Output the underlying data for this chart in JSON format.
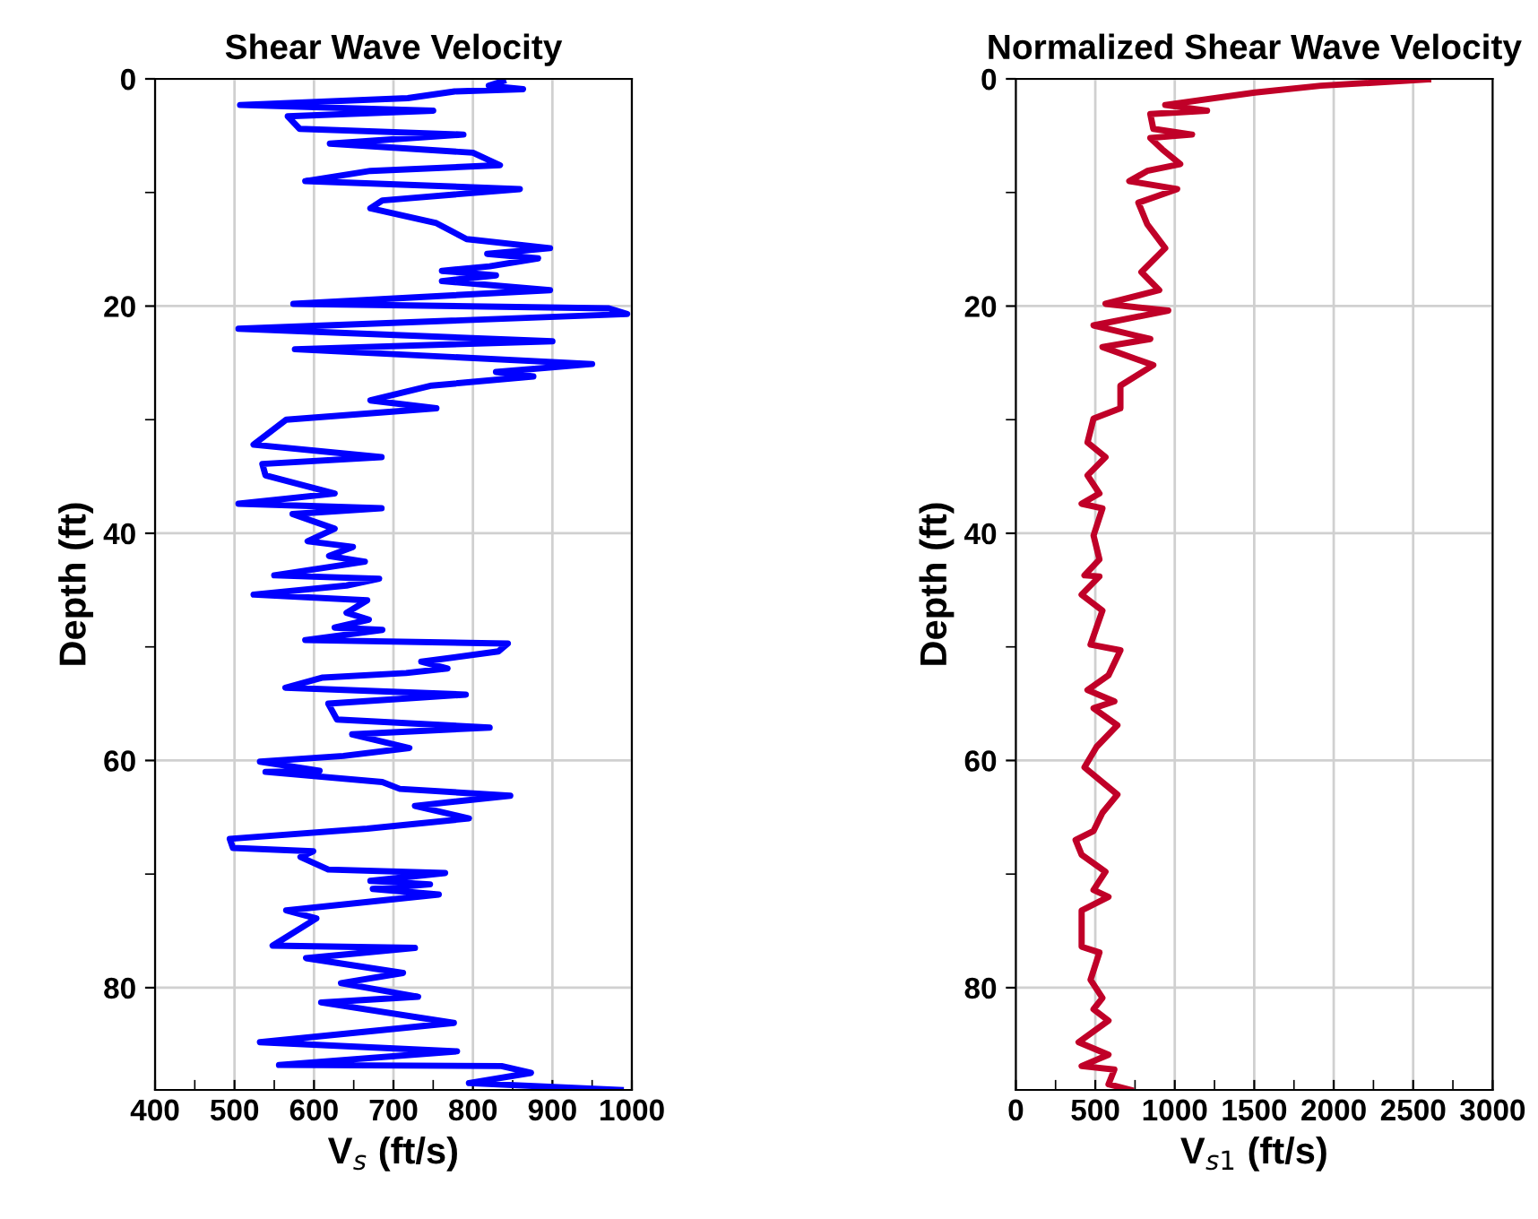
{
  "chart_data": [
    {
      "type": "line",
      "title": "Shear Wave Velocity",
      "xlabel": "V$_{s}$ (ft/s)",
      "ylabel": "Depth (ft)",
      "xlim": [
        400,
        1000
      ],
      "ylim": [
        89,
        0
      ],
      "xticks": [
        400,
        {
          "value": 450,
          "label": null
        },
        500,
        {
          "value": 550,
          "label": null
        },
        600,
        {
          "value": 650,
          "label": null
        },
        700,
        {
          "value": 750,
          "label": null
        },
        800,
        {
          "value": 850,
          "label": null
        },
        900,
        {
          "value": 950,
          "label": null
        },
        1000
      ],
      "yticks": [
        0,
        {
          "value": 10,
          "label": null
        },
        20,
        {
          "value": 30,
          "label": null
        },
        40,
        {
          "value": 50,
          "label": null
        },
        60,
        {
          "value": 70,
          "label": null
        },
        80
      ],
      "grid": true,
      "legend": false,
      "marker": "none",
      "line_style": "solid",
      "series": [
        {
          "color": "#0000ff",
          "x": [
            838,
            820,
            863,
            777,
            718,
            507,
            750,
            567,
            582,
            788,
            620,
            800,
            834,
            671,
            589,
            859,
            686,
            671,
            754,
            792,
            897,
            818,
            882,
            821,
            761,
            829,
            761,
            897,
            574,
            971,
            994,
            505,
            900,
            576,
            950,
            829,
            876,
            748,
            671,
            754,
            565,
            524,
            685,
            535,
            539,
            626,
            505,
            685,
            573,
            626,
            592,
            649,
            619,
            664,
            550,
            682,
            641,
            524,
            667,
            641,
            669,
            626,
            686,
            589,
            844,
            832,
            735,
            768,
            716,
            611,
            564,
            791,
            618,
            629,
            821,
            648,
            720,
            637,
            532,
            607,
            539,
            686,
            708,
            847,
            727,
            795,
            667,
            494,
            498,
            599,
            583,
            618,
            765,
            671,
            746,
            674,
            757,
            565,
            603,
            548,
            727,
            590,
            712,
            634,
            731,
            609,
            776,
            532,
            780,
            556,
            836,
            873,
            795,
            986
          ],
          "values": [
            0.2,
            0.6,
            0.9,
            1.1,
            1.7,
            2.3,
            2.8,
            3.3,
            4.4,
            4.9,
            5.7,
            6.5,
            7.6,
            8.1,
            9.0,
            9.7,
            10.7,
            11.4,
            12.7,
            14.1,
            14.9,
            15.4,
            15.8,
            16.5,
            16.9,
            17.3,
            17.8,
            18.6,
            19.8,
            20.2,
            20.7,
            22.0,
            23.1,
            23.8,
            25.1,
            25.8,
            26.2,
            27.0,
            28.3,
            29.0,
            30.0,
            32.2,
            33.3,
            33.9,
            34.9,
            36.5,
            37.4,
            37.8,
            38.3,
            39.6,
            40.7,
            41.2,
            42.0,
            42.5,
            43.7,
            44.0,
            44.6,
            45.4,
            45.9,
            47.0,
            47.6,
            48.3,
            48.5,
            49.4,
            49.7,
            50.4,
            51.3,
            51.9,
            52.3,
            52.7,
            53.6,
            54.2,
            55.0,
            56.4,
            57.1,
            57.7,
            58.9,
            59.6,
            60.1,
            60.9,
            61.0,
            61.9,
            62.5,
            63.1,
            64.0,
            65.1,
            66.0,
            66.9,
            67.7,
            68.0,
            68.5,
            69.6,
            69.9,
            70.6,
            70.9,
            71.3,
            71.8,
            73.2,
            73.9,
            76.3,
            76.5,
            77.4,
            78.7,
            79.6,
            80.8,
            81.3,
            83.1,
            84.8,
            85.6,
            86.8,
            86.9,
            87.5,
            88.4,
            89.0
          ]
        }
      ]
    },
    {
      "type": "line",
      "title": "Normalized Shear Wave Velocity",
      "xlabel": "V$_{s1}$ (ft/s)",
      "ylabel": "Depth (ft)",
      "xlim": [
        0,
        3000
      ],
      "ylim": [
        89,
        0
      ],
      "xticks": [
        0,
        {
          "value": 250,
          "label": null
        },
        500,
        {
          "value": 750,
          "label": null
        },
        1000,
        {
          "value": 1250,
          "label": null
        },
        1500,
        {
          "value": 1750,
          "label": null
        },
        2000,
        {
          "value": 2250,
          "label": null
        },
        2500,
        {
          "value": 2750,
          "label": null
        },
        3000
      ],
      "yticks": [
        0,
        {
          "value": 10,
          "label": null
        },
        20,
        {
          "value": 30,
          "label": null
        },
        40,
        {
          "value": 50,
          "label": null
        },
        60,
        {
          "value": 70,
          "label": null
        },
        80
      ],
      "grid": true,
      "legend": false,
      "marker": "none",
      "line_style": "solid",
      "series": [
        {
          "color": "#c00028",
          "x": [
            2594,
            1918,
            1504,
            940,
            1203,
            846,
            865,
            1109,
            846,
            921,
            1034,
            827,
            714,
            1015,
            771,
            827,
            940,
            790,
            902,
            564,
            959,
            489,
            846,
            545,
            865,
            658,
            658,
            489,
            451,
            564,
            451,
            526,
            414,
            545,
            489,
            526,
            432,
            526,
            414,
            545,
            470,
            658,
            583,
            451,
            620,
            489,
            639,
            508,
            432,
            639,
            545,
            489,
            376,
            414,
            564,
            489,
            583,
            414,
            414,
            526,
            470,
            545,
            489,
            583,
            395,
            583,
            414,
            620,
            583,
            722
          ],
          "values": [
            0.05,
            0.6,
            1.2,
            2.3,
            2.8,
            3.1,
            4.4,
            4.9,
            5.2,
            6.2,
            7.5,
            8.1,
            9.0,
            9.7,
            10.9,
            12.8,
            14.9,
            17.0,
            18.6,
            19.8,
            20.4,
            21.7,
            22.9,
            23.6,
            25.2,
            27.0,
            29.0,
            29.9,
            32.0,
            33.3,
            34.9,
            36.5,
            37.4,
            37.8,
            40.2,
            42.3,
            43.7,
            43.8,
            45.4,
            46.8,
            49.8,
            50.3,
            52.5,
            53.8,
            54.8,
            55.4,
            56.9,
            58.8,
            60.6,
            63.0,
            64.6,
            66.2,
            67.0,
            68.3,
            69.8,
            71.4,
            72.0,
            73.2,
            76.4,
            76.9,
            79.3,
            80.9,
            81.9,
            82.9,
            84.8,
            85.9,
            86.9,
            87.2,
            88.5,
            89.0
          ]
        }
      ]
    }
  ]
}
